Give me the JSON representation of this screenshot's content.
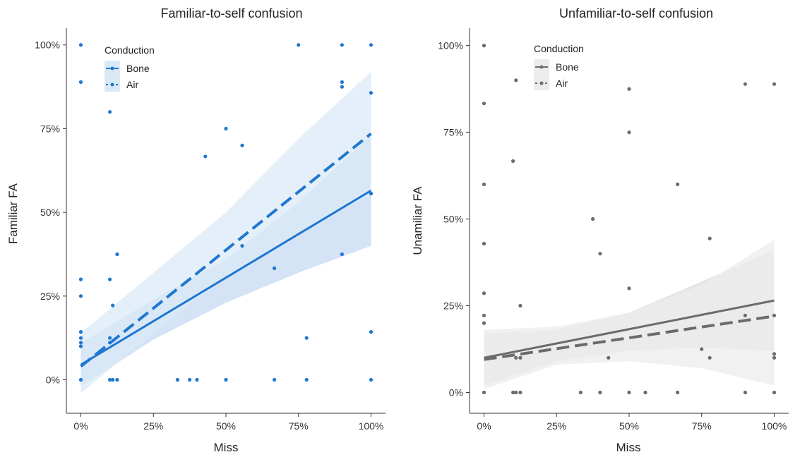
{
  "chart_data": [
    {
      "type": "scatter",
      "title": "Familiar-to-self confusion",
      "xlabel": "Miss",
      "ylabel": "Familiar FA",
      "xlim": [
        -0.05,
        1.05
      ],
      "ylim": [
        -0.1,
        1.05
      ],
      "x_ticks": [
        0,
        0.25,
        0.5,
        0.75,
        1.0
      ],
      "x_tick_labels": [
        "0%",
        "25%",
        "50%",
        "75%",
        "100%"
      ],
      "y_ticks": [
        0,
        0.25,
        0.5,
        0.75,
        1.0
      ],
      "y_tick_labels": [
        "0%",
        "25%",
        "50%",
        "75%",
        "100%"
      ],
      "grid": false,
      "legend": {
        "title": "Conduction",
        "position": "top-left",
        "entries": [
          "Bone",
          "Air"
        ]
      },
      "colors": {
        "points": "#1f77d0",
        "line": "#1f77d0",
        "band_outer": "#dbe9f7",
        "band_inner": "#c5daf2"
      },
      "points": [
        [
          0,
          1.0
        ],
        [
          0,
          0.889
        ],
        [
          0,
          0.3
        ],
        [
          0,
          0.25
        ],
        [
          0,
          0.143
        ],
        [
          0,
          0.125
        ],
        [
          0,
          0.111
        ],
        [
          0,
          0.1
        ],
        [
          0,
          0.0
        ],
        [
          0.1,
          0.8
        ],
        [
          0.1,
          0.3
        ],
        [
          0.1,
          0.111
        ],
        [
          0.1,
          0.125
        ],
        [
          0.11,
          0.222
        ],
        [
          0.11,
          0.0
        ],
        [
          0.1,
          0.0
        ],
        [
          0.125,
          0.375
        ],
        [
          0.125,
          0.0
        ],
        [
          0.333,
          0.0
        ],
        [
          0.375,
          0.0
        ],
        [
          0.4,
          0.0
        ],
        [
          0.429,
          0.667
        ],
        [
          0.5,
          0.75
        ],
        [
          0.5,
          0.0
        ],
        [
          0.556,
          0.7
        ],
        [
          0.556,
          0.4
        ],
        [
          0.667,
          0.333
        ],
        [
          0.667,
          0.0
        ],
        [
          0.75,
          1.0
        ],
        [
          0.778,
          0.125
        ],
        [
          0.778,
          0.0
        ],
        [
          0.9,
          1.0
        ],
        [
          0.9,
          0.889
        ],
        [
          0.9,
          0.875
        ],
        [
          0.9,
          0.375
        ],
        [
          1.0,
          1.0
        ],
        [
          1.0,
          0.857
        ],
        [
          1.0,
          0.556
        ],
        [
          1.0,
          0.143
        ],
        [
          1.0,
          0.0
        ]
      ],
      "series": [
        {
          "name": "Bone",
          "style": "solid",
          "x": [
            0,
            1.0
          ],
          "y": [
            0.045,
            0.565
          ],
          "band_x": [
            0,
            0.25,
            0.5,
            0.75,
            1.0
          ],
          "band_low": [
            -0.02,
            0.12,
            0.23,
            0.32,
            0.4
          ],
          "band_high": [
            0.11,
            0.24,
            0.36,
            0.53,
            0.73
          ]
        },
        {
          "name": "Air",
          "style": "dashed",
          "x": [
            0,
            1.0
          ],
          "y": [
            0.04,
            0.735
          ],
          "band_x": [
            0,
            0.25,
            0.5,
            0.75,
            1.0
          ],
          "band_low": [
            -0.04,
            0.14,
            0.31,
            0.44,
            0.55
          ],
          "band_high": [
            0.14,
            0.32,
            0.5,
            0.72,
            0.92
          ]
        }
      ]
    },
    {
      "type": "scatter",
      "title": "Unfamiliar-to-self confusion",
      "xlabel": "Miss",
      "ylabel": "Unamiliar FA",
      "xlim": [
        -0.05,
        1.05
      ],
      "ylim": [
        -0.06,
        1.05
      ],
      "x_ticks": [
        0,
        0.25,
        0.5,
        0.75,
        1.0
      ],
      "x_tick_labels": [
        "0%",
        "25%",
        "50%",
        "75%",
        "100%"
      ],
      "y_ticks": [
        0,
        0.25,
        0.5,
        0.75,
        1.0
      ],
      "y_tick_labels": [
        "0%",
        "25%",
        "50%",
        "75%",
        "100%"
      ],
      "grid": false,
      "legend": {
        "title": "Conduction",
        "position": "top-left",
        "entries": [
          "Bone",
          "Air"
        ]
      },
      "colors": {
        "points": "#6b6b6b",
        "line": "#6b6b6b",
        "band_outer": "#ececec",
        "band_inner": "#dcdcdc"
      },
      "points": [
        [
          0,
          1.0
        ],
        [
          0,
          0.833
        ],
        [
          0,
          0.6
        ],
        [
          0,
          0.429
        ],
        [
          0,
          0.286
        ],
        [
          0,
          0.222
        ],
        [
          0,
          0.2
        ],
        [
          0,
          0.0
        ],
        [
          0.1,
          0.667
        ],
        [
          0.1,
          0.0
        ],
        [
          0.11,
          0.9
        ],
        [
          0.11,
          0.1
        ],
        [
          0.11,
          0.0
        ],
        [
          0.125,
          0.25
        ],
        [
          0.125,
          0.1
        ],
        [
          0.125,
          0.0
        ],
        [
          0.333,
          0.0
        ],
        [
          0.375,
          0.5
        ],
        [
          0.4,
          0.4
        ],
        [
          0.4,
          0.0
        ],
        [
          0.429,
          0.1
        ],
        [
          0.5,
          0.875
        ],
        [
          0.5,
          0.75
        ],
        [
          0.5,
          0.3
        ],
        [
          0.5,
          0.0
        ],
        [
          0.556,
          0.0
        ],
        [
          0.667,
          0.6
        ],
        [
          0.667,
          0.0
        ],
        [
          0.75,
          0.125
        ],
        [
          0.778,
          0.444
        ],
        [
          0.778,
          0.1
        ],
        [
          0.9,
          0.889
        ],
        [
          0.9,
          0.222
        ],
        [
          0.9,
          0.0
        ],
        [
          1.0,
          0.889
        ],
        [
          1.0,
          0.222
        ],
        [
          1.0,
          0.111
        ],
        [
          1.0,
          0.1
        ],
        [
          1.0,
          0.0
        ]
      ],
      "series": [
        {
          "name": "Bone",
          "style": "solid",
          "x": [
            0,
            1.0
          ],
          "y": [
            0.1,
            0.265
          ],
          "band_x": [
            0,
            0.25,
            0.5,
            0.75,
            1.0
          ],
          "band_low": [
            0.02,
            0.09,
            0.12,
            0.13,
            0.12
          ],
          "band_high": [
            0.17,
            0.18,
            0.23,
            0.32,
            0.41
          ]
        },
        {
          "name": "Air",
          "style": "dashed",
          "x": [
            0,
            1.0
          ],
          "y": [
            0.095,
            0.22
          ],
          "band_x": [
            0,
            0.25,
            0.5,
            0.75,
            1.0
          ],
          "band_low": [
            0.01,
            0.08,
            0.09,
            0.07,
            0.02
          ],
          "band_high": [
            0.18,
            0.19,
            0.23,
            0.31,
            0.44
          ]
        }
      ]
    }
  ]
}
